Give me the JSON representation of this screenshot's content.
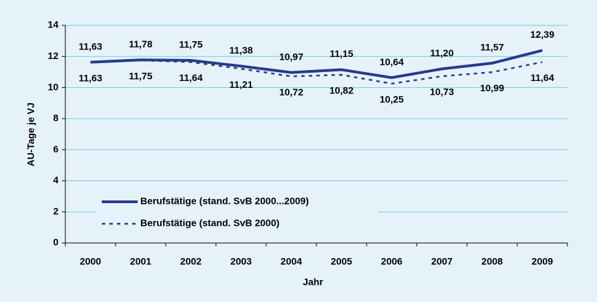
{
  "chart_data": {
    "type": "line",
    "categories": [
      "2000",
      "2001",
      "2002",
      "2003",
      "2004",
      "2005",
      "2006",
      "2007",
      "2008",
      "2009"
    ],
    "series": [
      {
        "name": "Berufstätige (stand. SvB 2000...2009)",
        "color": "#283a8c",
        "dash": "solid",
        "values": [
          11.63,
          11.78,
          11.75,
          11.38,
          10.97,
          11.15,
          10.64,
          11.2,
          11.57,
          12.39
        ],
        "value_labels": [
          "11,63",
          "11,78",
          "11,75",
          "11,38",
          "10,97",
          "11,15",
          "10,64",
          "11,20",
          "11,57",
          "12,39"
        ]
      },
      {
        "name": "Berufstätige (stand. SvB 2000)",
        "color": "#283a8c",
        "dash": "dotted",
        "values": [
          11.63,
          11.75,
          11.64,
          11.21,
          10.72,
          10.82,
          10.25,
          10.73,
          10.99,
          11.64
        ],
        "value_labels": [
          "11,63",
          "11,75",
          "11,64",
          "11,21",
          "10,72",
          "10,82",
          "10,25",
          "10,73",
          "10,99",
          "11,64"
        ]
      }
    ],
    "ylim": [
      0,
      14
    ],
    "yticks": [
      0,
      2,
      4,
      6,
      8,
      10,
      12,
      14
    ],
    "xlabel": "Jahr",
    "ylabel": "AU-Tage je VJ",
    "grid": true,
    "legend": "lower left"
  }
}
